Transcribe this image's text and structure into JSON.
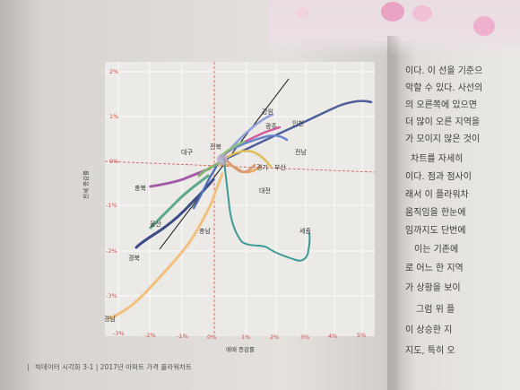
{
  "chart": {
    "y_ticks": [
      "2%",
      "1%",
      "0%",
      "-1%",
      "-2%",
      "-3%"
    ],
    "x_ticks": [
      "-3%",
      "-2%",
      "-1%",
      "0%",
      "1%",
      "2%",
      "3%",
      "4%",
      "5%"
    ],
    "x_axis_title": "매매 증감률",
    "y_axis_title": "전세 증감률",
    "region_labels": [
      "강원",
      "광주",
      "인천",
      "전북",
      "대구",
      "전남",
      "경기",
      "부산",
      "대전",
      "충북",
      "울산",
      "충남",
      "세종",
      "경북",
      "경남"
    ]
  },
  "footer": {
    "section": "빅데이터 시각화 3-1",
    "caption": "2017년 아파트 가격 플라워차트"
  },
  "right_page": {
    "lines": [
      "이다. 이 선을 기준으",
      "악할 수 있다. 사선의",
      "의 오른쪽에 있으면",
      "더 많이 오른 지역을",
      "가 모이지 않은 것이",
      "차트를 자세히",
      "이다. 점과 점사이",
      "래서 이 플라워차",
      "움직임을 한눈에",
      "임까지도 단번에",
      "이는 기존에",
      "로 어느 한 지역",
      "가 상황을 보이",
      "그럼 위 플",
      "이 상승한 지",
      "지도, 특히 오"
    ]
  }
}
